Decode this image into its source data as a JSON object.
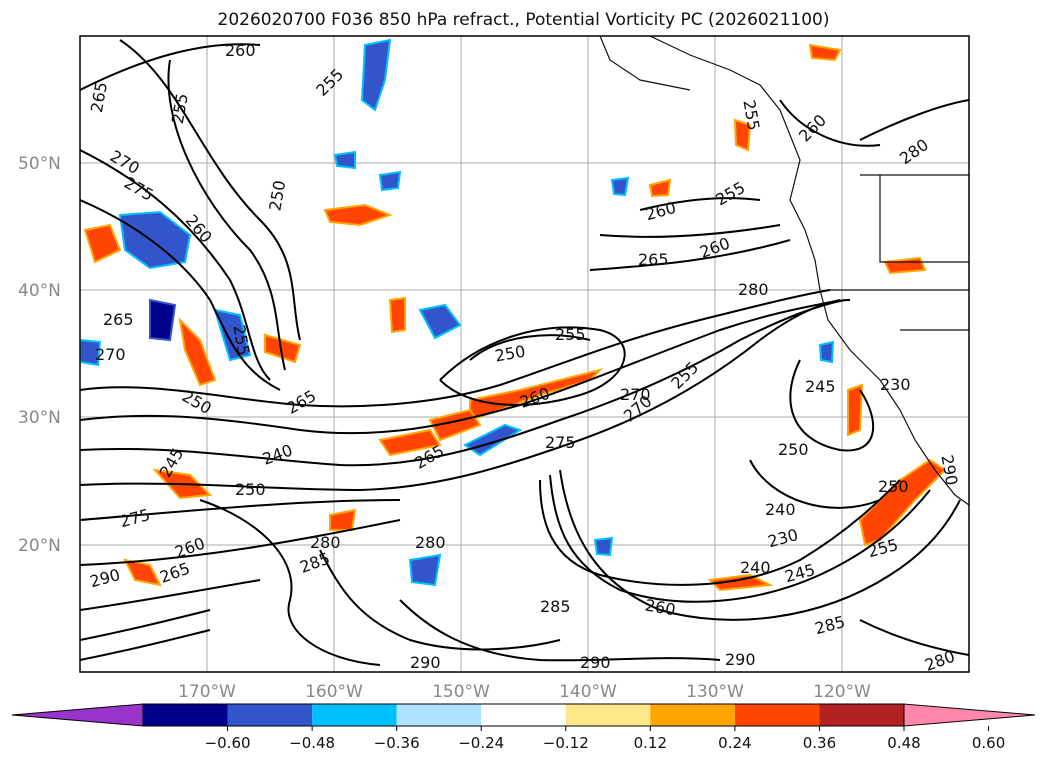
{
  "title": "2026020700 F036 850 hPa refract., Potential Vorticity PC (2026021100)",
  "map": {
    "lat_labels": [
      "50°N",
      "40°N",
      "30°N",
      "20°N"
    ],
    "lon_labels": [
      "170°W",
      "160°W",
      "150°W",
      "140°W",
      "130°W",
      "120°W"
    ],
    "grid": true
  },
  "contour_labels": [
    "260",
    "265",
    "255",
    "270",
    "275",
    "250",
    "260",
    "255",
    "270",
    "265",
    "280",
    "260",
    "255",
    "250",
    "260",
    "265",
    "255",
    "250",
    "260",
    "265",
    "270",
    "275",
    "240",
    "245",
    "250",
    "255",
    "265",
    "275",
    "280",
    "285",
    "290",
    "285",
    "280",
    "290",
    "290",
    "240",
    "245",
    "250",
    "255",
    "260",
    "270",
    "285",
    "280",
    "290",
    "255",
    "250",
    "245",
    "240",
    "230",
    "260",
    "280",
    "290",
    "230",
    "255",
    "265",
    "260"
  ],
  "colorbar": {
    "ticks": [
      "−0.60",
      "−0.48",
      "−0.36",
      "−0.24",
      "−0.12",
      "0.12",
      "0.24",
      "0.36",
      "0.48",
      "0.60"
    ],
    "colors": [
      "#9933cc",
      "#00008b",
      "#3355cc",
      "#00bfff",
      "#aee2ff",
      "#ffffff",
      "#ffe88a",
      "#ffa500",
      "#ff4500",
      "#b22222",
      "#ff88aa"
    ]
  }
}
